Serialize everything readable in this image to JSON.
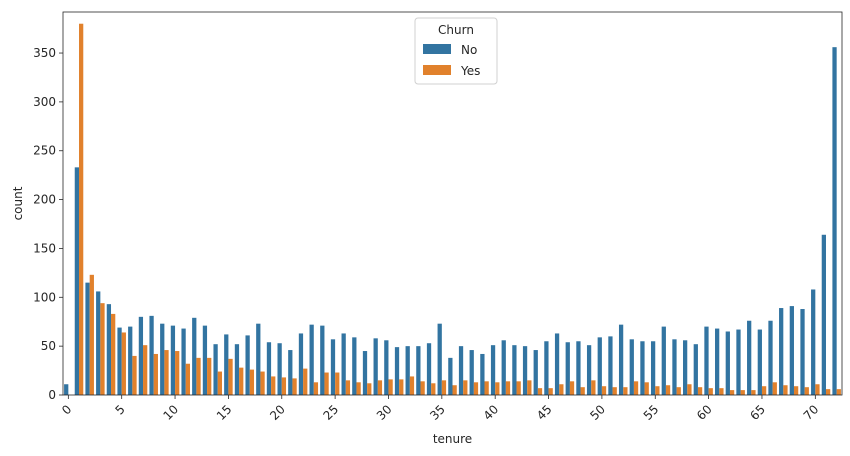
{
  "chart_data": {
    "type": "bar",
    "xlabel": "tenure",
    "ylabel": "count",
    "ylim": [
      0,
      392
    ],
    "yticks": [
      0,
      50,
      100,
      150,
      200,
      250,
      300,
      350
    ],
    "xtick_labels": [
      "0",
      "5",
      "10",
      "15",
      "20",
      "25",
      "30",
      "35",
      "40",
      "45",
      "50",
      "55",
      "60",
      "65",
      "70"
    ],
    "x_label_rotation": -45,
    "grid": false,
    "legend": {
      "title": "Churn",
      "placement": "upper-center"
    },
    "categories": [
      0,
      1,
      2,
      3,
      4,
      5,
      6,
      7,
      8,
      9,
      10,
      11,
      12,
      13,
      14,
      15,
      16,
      17,
      18,
      19,
      20,
      21,
      22,
      23,
      24,
      25,
      26,
      27,
      28,
      29,
      30,
      31,
      32,
      33,
      34,
      35,
      36,
      37,
      38,
      39,
      40,
      41,
      42,
      43,
      44,
      45,
      46,
      47,
      48,
      49,
      50,
      51,
      52,
      53,
      54,
      55,
      56,
      57,
      58,
      59,
      60,
      61,
      62,
      63,
      64,
      65,
      66,
      67,
      68,
      69,
      70,
      71,
      72
    ],
    "series": [
      {
        "name": "No",
        "color": "#3274a1",
        "values": [
          11,
          233,
          115,
          106,
          93,
          69,
          70,
          80,
          81,
          73,
          71,
          68,
          79,
          71,
          52,
          62,
          52,
          61,
          73,
          54,
          53,
          46,
          63,
          72,
          71,
          57,
          63,
          59,
          45,
          58,
          56,
          49,
          50,
          50,
          53,
          73,
          38,
          50,
          46,
          42,
          51,
          56,
          51,
          50,
          46,
          55,
          63,
          54,
          55,
          51,
          59,
          60,
          72,
          57,
          55,
          55,
          70,
          57,
          56,
          52,
          70,
          68,
          65,
          67,
          76,
          67,
          76,
          89,
          91,
          88,
          108,
          164,
          356
        ]
      },
      {
        "name": "Yes",
        "color": "#e1812c",
        "values": [
          0,
          380,
          123,
          94,
          83,
          64,
          40,
          51,
          42,
          46,
          45,
          32,
          38,
          38,
          24,
          37,
          28,
          26,
          24,
          19,
          18,
          17,
          27,
          13,
          23,
          23,
          15,
          13,
          12,
          15,
          16,
          16,
          19,
          14,
          12,
          15,
          10,
          15,
          13,
          14,
          13,
          14,
          14,
          15,
          7,
          7,
          11,
          14,
          8,
          15,
          9,
          8,
          8,
          14,
          13,
          9,
          10,
          8,
          11,
          8,
          7,
          7,
          5,
          5,
          5,
          9,
          13,
          10,
          9,
          8,
          11,
          6,
          6
        ]
      }
    ]
  }
}
